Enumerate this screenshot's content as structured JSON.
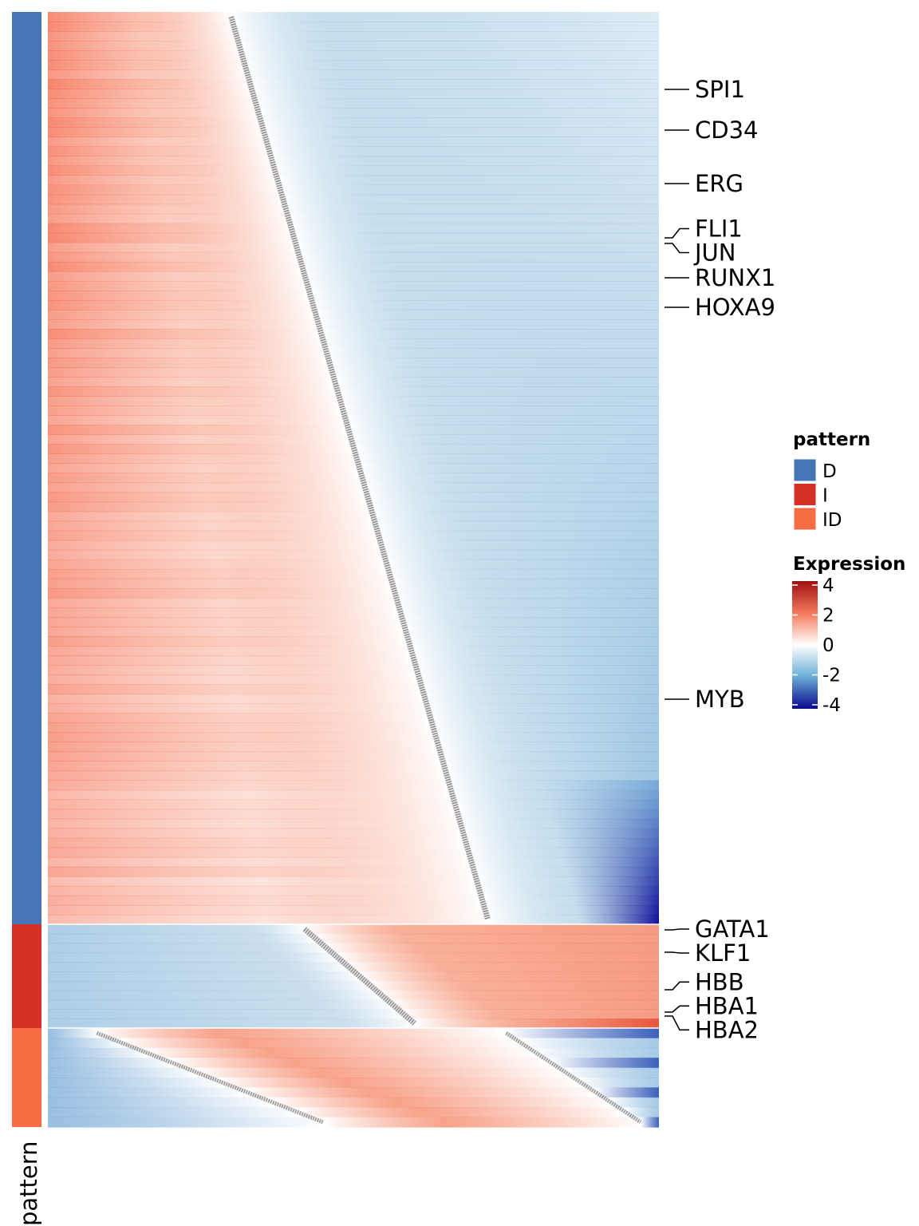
{
  "chart_data": {
    "type": "heatmap",
    "title": "",
    "xlabel": "",
    "ylabel": "",
    "row_annotation": {
      "name": "pattern",
      "groups": [
        {
          "label": "D",
          "color": "#4575B4",
          "rows": 1143
        },
        {
          "label": "I",
          "color": "#D73027",
          "rows": 130
        },
        {
          "label": "ID",
          "color": "#F46D43",
          "rows": 124
        }
      ]
    },
    "color_scale": {
      "title": "Expression",
      "ticks": [
        "4",
        "2",
        "0",
        "-2",
        "-4"
      ],
      "min": -4,
      "max": 4,
      "stops": [
        {
          "value": 4,
          "color": "#9E0F12"
        },
        {
          "value": 2,
          "color": "#F4795C"
        },
        {
          "value": 0,
          "color": "#FFFFFF"
        },
        {
          "value": -2,
          "color": "#6AAED6"
        },
        {
          "value": -4,
          "color": "#08088C"
        }
      ]
    },
    "pattern_profiles": {
      "D": {
        "crossover_start": 0.3,
        "crossover_end": 0.72
      },
      "I": {
        "crossover_start": 0.42,
        "crossover_end": 0.6
      },
      "ID": {
        "rise_start": 0.08,
        "rise_end": 0.45,
        "fall_start": 0.75,
        "fall_end": 0.97
      }
    },
    "labeled_genes": [
      {
        "gene": "SPI1",
        "row": 97
      },
      {
        "gene": "CD34",
        "row": 148
      },
      {
        "gene": "ERG",
        "row": 215
      },
      {
        "gene": "FLI1",
        "row": 283
      },
      {
        "gene": "JUN",
        "row": 290
      },
      {
        "gene": "RUNX1",
        "row": 333
      },
      {
        "gene": "HOXA9",
        "row": 370
      },
      {
        "gene": "MYB",
        "row": 861
      },
      {
        "gene": "GATA1",
        "row": 1150
      },
      {
        "gene": "KLF1",
        "row": 1178
      },
      {
        "gene": "HBB",
        "row": 1225
      },
      {
        "gene": "HBA1",
        "row": 1253
      },
      {
        "gene": "HBA2",
        "row": 1258
      }
    ]
  }
}
